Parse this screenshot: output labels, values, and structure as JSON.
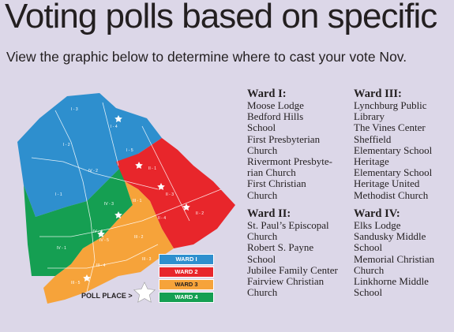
{
  "title": "Voting polls based on specific",
  "subtitle": "View the graphic below to determine where to cast your vote Nov.",
  "colors": {
    "background": "#dcd7e8",
    "ward1": "#2e8fce",
    "ward2": "#e8262b",
    "ward3": "#f6a33a",
    "ward4": "#159f52"
  },
  "map": {
    "precincts": [
      "I - 3",
      "I - 4",
      "I - 2",
      "I - 5",
      "I - 1",
      "IV - 2",
      "IV - 3",
      "IV - 4",
      "IV - 1",
      "IV - 5",
      "II - 1",
      "II - 3",
      "II - 4",
      "II - 2",
      "III - 1",
      "III - 2",
      "III - 3",
      "III - 4",
      "III - 5"
    ]
  },
  "legend": {
    "items": [
      "WARD I",
      "WARD 2",
      "WARD 3",
      "WARD 4"
    ],
    "poll_place": "POLL PLACE >"
  },
  "wards": {
    "w1": {
      "title": "Ward I:",
      "places": [
        "Moose Lodge",
        "Bedford Hills",
        "School",
        "First Presbyterian",
        "Church",
        "Rivermont Presbyte-",
        "rian Church",
        "First Christian",
        "Church"
      ]
    },
    "w2": {
      "title": "Ward II:",
      "places": [
        "St. Paul’s Episcopal",
        "Church",
        "Robert S. Payne",
        "School",
        "Jubilee Family Center",
        "Fairview Christian",
        "Church"
      ]
    },
    "w3": {
      "title": "Ward III:",
      "places": [
        "Lynchburg Public",
        "Library",
        "The Vines Center",
        "Sheffield",
        "Elementary School",
        "Heritage",
        "Elementary School",
        "Heritage United",
        "Methodist Church"
      ]
    },
    "w4": {
      "title": "Ward IV:",
      "places": [
        "Elks Lodge",
        "Sandusky Middle",
        "School",
        "Memorial Christian",
        "Church",
        "Linkhorne Middle",
        "School"
      ]
    }
  }
}
